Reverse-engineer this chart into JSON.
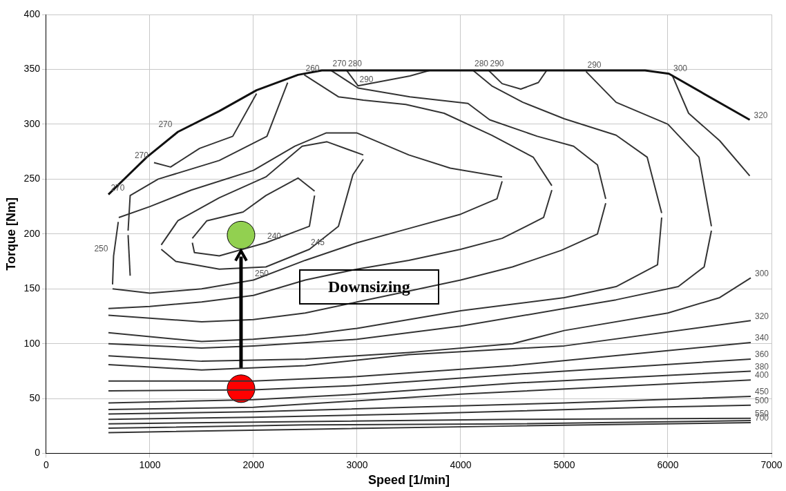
{
  "chart_data": {
    "type": "line",
    "xlabel": "Speed [1/min]",
    "ylabel": "Torque [Nm]",
    "xlim": [
      0,
      7000
    ],
    "ylim": [
      0,
      400
    ],
    "xticks": [
      0,
      1000,
      2000,
      3000,
      4000,
      5000,
      6000,
      7000
    ],
    "yticks": [
      0,
      50,
      100,
      150,
      200,
      250,
      300,
      350,
      400
    ],
    "grid": true,
    "marker": "none",
    "line_style": "solid",
    "series": [
      {
        "color": "#111111",
        "x": [
          600,
          970,
          1270,
          1670,
          2030,
          2430,
          2660,
          5780,
          6010,
          6790
        ],
        "values": [
          236,
          270,
          293,
          312,
          331,
          345,
          349,
          349,
          346,
          304
        ]
      },
      {
        "color": "#333333",
        "x": [
          1410,
          1550,
          1900,
          2120,
          2430,
          2590
        ],
        "values": [
          196,
          212,
          220,
          235,
          251,
          239
        ]
      },
      {
        "color": "#333333",
        "x": [
          1410,
          1430,
          1670,
          2120,
          2540,
          2590
        ],
        "values": [
          192,
          183,
          180,
          192,
          207,
          235
        ]
      },
      {
        "color": "#333333",
        "x": [
          1110,
          1270,
          1670,
          2120,
          2470,
          2710,
          3060
        ],
        "values": [
          190,
          212,
          233,
          252,
          280,
          284,
          272
        ]
      },
      {
        "color": "#333333",
        "x": [
          1110,
          1250,
          1670,
          2120,
          2540,
          2820,
          2960,
          3060
        ],
        "values": [
          186,
          175,
          168,
          170,
          186,
          207,
          254,
          268
        ]
      },
      {
        "color": "#333333",
        "x": [
          640,
          650,
          695
        ],
        "values": [
          154,
          180,
          211
        ]
      },
      {
        "color": "#333333",
        "x": [
          700,
          1000,
          1400,
          2000,
          2400,
          2700,
          3000,
          3500,
          3900,
          4400
        ],
        "values": [
          215,
          225,
          240,
          258,
          280,
          292,
          292,
          272,
          260,
          252
        ]
      },
      {
        "color": "#333333",
        "x": [
          640,
          1000,
          1500,
          2000,
          2500,
          3000,
          3500,
          4000,
          4350,
          4400
        ],
        "values": [
          150,
          146,
          150,
          158,
          176,
          192,
          205,
          218,
          232,
          248
        ]
      },
      {
        "color": "#333333",
        "x": [
          2490,
          2820,
          3060,
          3470,
          3840,
          4300,
          4700,
          4880
        ],
        "values": [
          345,
          325,
          322,
          318,
          310,
          290,
          270,
          244
        ]
      },
      {
        "color": "#333333",
        "x": [
          600,
          1000,
          1500,
          2000,
          2500,
          3000,
          3500,
          4000,
          4400,
          4800,
          4880
        ],
        "values": [
          132,
          134,
          138,
          144,
          158,
          168,
          176,
          186,
          196,
          215,
          240
        ]
      },
      {
        "color": "#333333",
        "x": [
          2750,
          3010,
          3510,
          4070,
          4280,
          4740,
          5090,
          5320,
          5400
        ],
        "values": [
          349,
          333,
          325,
          319,
          304,
          289,
          280,
          263,
          232
        ]
      },
      {
        "color": "#333333",
        "x": [
          600,
          1500,
          2000,
          2500,
          3000,
          3500,
          4000,
          4500,
          4970,
          5320,
          5400
        ],
        "values": [
          126,
          120,
          122,
          128,
          138,
          148,
          158,
          170,
          185,
          200,
          228
        ]
      },
      {
        "color": "#333333",
        "x": [
          4120,
          4300,
          4600,
          5000,
          5500,
          5800,
          5940
        ],
        "values": [
          349,
          335,
          320,
          305,
          290,
          270,
          219
        ]
      },
      {
        "color": "#333333",
        "x": [
          600,
          1500,
          2000,
          2500,
          3000,
          3500,
          4000,
          4500,
          5000,
          5500,
          5900,
          5940
        ],
        "values": [
          110,
          102,
          104,
          108,
          114,
          122,
          130,
          136,
          142,
          152,
          172,
          215
        ]
      },
      {
        "color": "#333333",
        "x": [
          5210,
          5500,
          6000,
          6300,
          6420
        ],
        "values": [
          348,
          320,
          300,
          270,
          207
        ]
      },
      {
        "color": "#333333",
        "x": [
          600,
          1500,
          2000,
          3000,
          4000,
          5000,
          5500,
          6100,
          6350,
          6420
        ],
        "values": [
          100,
          96,
          98,
          104,
          116,
          132,
          140,
          152,
          170,
          203
        ]
      },
      {
        "color": "#333333",
        "x": [
          6040,
          6200,
          6500,
          6790
        ],
        "values": [
          345,
          310,
          285,
          253
        ]
      },
      {
        "color": "#333333",
        "x": [
          4270,
          4400,
          4580,
          4750,
          4830
        ],
        "values": [
          349,
          337,
          332,
          338,
          349
        ]
      },
      {
        "color": "#333333",
        "x": [
          2900,
          3010,
          3510,
          3700
        ],
        "values": [
          349,
          335,
          344,
          349
        ]
      },
      {
        "color": "#333333",
        "x": [
          1040,
          1200,
          1480,
          1800,
          2030
        ],
        "values": [
          265,
          261,
          278,
          289,
          328
        ]
      },
      {
        "color": "#333333",
        "x": [
          790,
          810,
          1080,
          1670,
          2130,
          2330
        ],
        "values": [
          203,
          235,
          250,
          267,
          289,
          338
        ]
      },
      {
        "color": "#333333",
        "x": [
          790,
          810
        ],
        "values": [
          199,
          162
        ]
      },
      {
        "color": "#333333",
        "x": [
          600,
          1500,
          2500,
          3500,
          4500,
          5000,
          6000,
          6500,
          6800
        ],
        "values": [
          89,
          84,
          86,
          92,
          100,
          112,
          128,
          142,
          160
        ]
      },
      {
        "color": "#333333",
        "x": [
          600,
          1500,
          2500,
          3500,
          5000,
          6800
        ],
        "values": [
          81,
          76,
          80,
          90,
          98,
          121
        ]
      },
      {
        "color": "#333333",
        "x": [
          600,
          2000,
          3000,
          4500,
          6800
        ],
        "values": [
          66,
          66,
          70,
          80,
          101
        ]
      },
      {
        "color": "#333333",
        "x": [
          600,
          2000,
          3000,
          4500,
          6800
        ],
        "values": [
          57,
          58,
          62,
          72,
          86
        ]
      },
      {
        "color": "#333333",
        "x": [
          600,
          2000,
          3000,
          4500,
          6800
        ],
        "values": [
          46,
          49,
          54,
          64,
          75
        ]
      },
      {
        "color": "#333333",
        "x": [
          600,
          2000,
          4000,
          6800
        ],
        "values": [
          40,
          42,
          54,
          67
        ]
      },
      {
        "color": "#333333",
        "x": [
          600,
          2000,
          3500,
          5000,
          6800
        ],
        "values": [
          36,
          38,
          42,
          46,
          52
        ]
      },
      {
        "color": "#333333",
        "x": [
          600,
          2000,
          3500,
          5800,
          6800
        ],
        "values": [
          31,
          33,
          36,
          42,
          44
        ]
      },
      {
        "color": "#333333",
        "x": [
          600,
          2500,
          4500,
          6800
        ],
        "values": [
          27,
          29,
          31,
          32
        ]
      },
      {
        "color": "#333333",
        "x": [
          600,
          2500,
          4500,
          6800
        ],
        "values": [
          23,
          26,
          27,
          30
        ]
      },
      {
        "color": "#333333",
        "x": [
          600,
          2500,
          4500,
          6800
        ],
        "values": [
          19,
          22,
          25,
          28
        ]
      },
      {
        "type": "scatter",
        "marker": "circle",
        "color": "#ff0000",
        "x": [
          1880
        ],
        "values": [
          59
        ]
      },
      {
        "type": "scatter",
        "marker": "circle",
        "color": "#92d050",
        "x": [
          1880
        ],
        "values": [
          199
        ]
      }
    ],
    "annotations": [
      "Downsizing",
      {
        "text": "260",
        "x": 2490,
        "y": 345
      },
      {
        "text": "270",
        "x": 2750,
        "y": 349
      },
      {
        "text": "280",
        "x": 2900,
        "y": 349
      },
      {
        "text": "290",
        "x": 3010,
        "y": 335
      },
      {
        "text": "280",
        "x": 4120,
        "y": 349
      },
      {
        "text": "290",
        "x": 4270,
        "y": 349
      },
      {
        "text": "290",
        "x": 5210,
        "y": 348
      },
      {
        "text": "300",
        "x": 6040,
        "y": 345
      },
      {
        "text": "320",
        "x": 6790,
        "y": 304
      },
      {
        "text": "300",
        "x": 6800,
        "y": 160
      },
      {
        "text": "320",
        "x": 6800,
        "y": 121
      },
      {
        "text": "340",
        "x": 6800,
        "y": 101
      },
      {
        "text": "360",
        "x": 6800,
        "y": 86
      },
      {
        "text": "380",
        "x": 6800,
        "y": 75
      },
      {
        "text": "400",
        "x": 6800,
        "y": 67
      },
      {
        "text": "450",
        "x": 6800,
        "y": 52
      },
      {
        "text": "500",
        "x": 6800,
        "y": 44
      },
      {
        "text": "550",
        "x": 6800,
        "y": 32
      },
      {
        "text": "700",
        "x": 6800,
        "y": 28
      },
      {
        "text": "270",
        "x": 1270,
        "y": 293
      },
      {
        "text": "270",
        "x": 1040,
        "y": 265
      },
      {
        "text": "270",
        "x": 810,
        "y": 235
      },
      {
        "text": "250",
        "x": 650,
        "y": 180
      },
      {
        "text": "240",
        "x": 2120,
        "y": 192
      },
      {
        "text": "245",
        "x": 2540,
        "y": 186
      },
      {
        "text": "250",
        "x": 2000,
        "y": 158
      }
    ]
  }
}
